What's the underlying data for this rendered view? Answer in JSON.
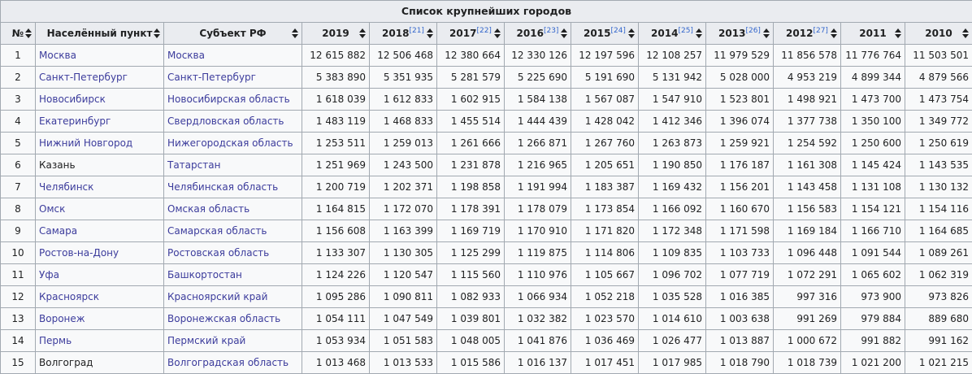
{
  "table": {
    "caption": "Список крупнейших городов",
    "columns": [
      {
        "label": "№",
        "ref": ""
      },
      {
        "label": "Населённый пункт",
        "ref": ""
      },
      {
        "label": "Субъект РФ",
        "ref": ""
      },
      {
        "label": "2019",
        "ref": ""
      },
      {
        "label": "2018",
        "ref": "[21]"
      },
      {
        "label": "2017",
        "ref": "[22]"
      },
      {
        "label": "2016",
        "ref": "[23]"
      },
      {
        "label": "2015",
        "ref": "[24]"
      },
      {
        "label": "2014",
        "ref": "[25]"
      },
      {
        "label": "2013",
        "ref": "[26]"
      },
      {
        "label": "2012",
        "ref": "[27]"
      },
      {
        "label": "2011",
        "ref": ""
      },
      {
        "label": "2010",
        "ref": ""
      }
    ],
    "rows": [
      {
        "n": "1",
        "city": "Москва",
        "region": "Москва",
        "values": [
          "12 615 882",
          "12 506 468",
          "12 380 664",
          "12 330 126",
          "12 197 596",
          "12 108 257",
          "11 979 529",
          "11 856 578",
          "11 776 764",
          "11 503 501"
        ]
      },
      {
        "n": "2",
        "city": "Санкт-Петербург",
        "region": "Санкт-Петербург",
        "values": [
          "5 383 890",
          "5 351 935",
          "5 281 579",
          "5 225 690",
          "5 191 690",
          "5 131 942",
          "5 028 000",
          "4 953 219",
          "4 899 344",
          "4 879 566"
        ]
      },
      {
        "n": "3",
        "city": "Новосибирск",
        "region": "Новосибирская область",
        "values": [
          "1 618 039",
          "1 612 833",
          "1 602 915",
          "1 584 138",
          "1 567 087",
          "1 547 910",
          "1 523 801",
          "1 498 921",
          "1 473 700",
          "1 473 754"
        ]
      },
      {
        "n": "4",
        "city": "Екатеринбург",
        "region": "Свердловская область",
        "values": [
          "1 483 119",
          "1 468 833",
          "1 455 514",
          "1 444 439",
          "1 428 042",
          "1 412 346",
          "1 396 074",
          "1 377 738",
          "1 350 100",
          "1 349 772"
        ]
      },
      {
        "n": "5",
        "city": "Нижний Новгород",
        "region": "Нижегородская область",
        "values": [
          "1 253 511",
          "1 259 013",
          "1 261 666",
          "1 266 871",
          "1 267 760",
          "1 263 873",
          "1 259 921",
          "1 254 592",
          "1 250 600",
          "1 250 619"
        ]
      },
      {
        "n": "6",
        "city": "Казань",
        "region": "Татарстан",
        "visited": true,
        "values": [
          "1 251 969",
          "1 243 500",
          "1 231 878",
          "1 216 965",
          "1 205 651",
          "1 190 850",
          "1 176 187",
          "1 161 308",
          "1 145 424",
          "1 143 535"
        ]
      },
      {
        "n": "7",
        "city": "Челябинск",
        "region": "Челябинская область",
        "values": [
          "1 200 719",
          "1 202 371",
          "1 198 858",
          "1 191 994",
          "1 183 387",
          "1 169 432",
          "1 156 201",
          "1 143 458",
          "1 131 108",
          "1 130 132"
        ]
      },
      {
        "n": "8",
        "city": "Омск",
        "region": "Омская область",
        "values": [
          "1 164 815",
          "1 172 070",
          "1 178 391",
          "1 178 079",
          "1 173 854",
          "1 166 092",
          "1 160 670",
          "1 156 583",
          "1 154 121",
          "1 154 116"
        ]
      },
      {
        "n": "9",
        "city": "Самара",
        "region": "Самарская область",
        "values": [
          "1 156 608",
          "1 163 399",
          "1 169 719",
          "1 170 910",
          "1 171 820",
          "1 172 348",
          "1 171 598",
          "1 169 184",
          "1 166 710",
          "1 164 685"
        ]
      },
      {
        "n": "10",
        "city": "Ростов-на-Дону",
        "region": "Ростовская область",
        "values": [
          "1 133 307",
          "1 130 305",
          "1 125 299",
          "1 119 875",
          "1 114 806",
          "1 109 835",
          "1 103 733",
          "1 096 448",
          "1 091 544",
          "1 089 261"
        ]
      },
      {
        "n": "11",
        "city": "Уфа",
        "region": "Башкортостан",
        "values": [
          "1 124 226",
          "1 120 547",
          "1 115 560",
          "1 110 976",
          "1 105 667",
          "1 096 702",
          "1 077 719",
          "1 072 291",
          "1 065 602",
          "1 062 319"
        ]
      },
      {
        "n": "12",
        "city": "Красноярск",
        "region": "Красноярский край",
        "values": [
          "1 095 286",
          "1 090 811",
          "1 082 933",
          "1 066 934",
          "1 052 218",
          "1 035 528",
          "1 016 385",
          "997 316",
          "973 900",
          "973 826"
        ]
      },
      {
        "n": "13",
        "city": "Воронеж",
        "region": "Воронежская область",
        "values": [
          "1 054 111",
          "1 047 549",
          "1 039 801",
          "1 032 382",
          "1 023 570",
          "1 014 610",
          "1 003 638",
          "991 269",
          "979 884",
          "889 680"
        ]
      },
      {
        "n": "14",
        "city": "Пермь",
        "region": "Пермский край",
        "values": [
          "1 053 934",
          "1 051 583",
          "1 048 005",
          "1 041 876",
          "1 036 469",
          "1 026 477",
          "1 013 887",
          "1 000 672",
          "991 882",
          "991 162"
        ]
      },
      {
        "n": "15",
        "city": "Волгоград",
        "region": "Волгоградская область",
        "visited": true,
        "values": [
          "1 013 468",
          "1 013 533",
          "1 015 586",
          "1 016 137",
          "1 017 451",
          "1 017 985",
          "1 018 790",
          "1 018 739",
          "1 021 200",
          "1 021 215"
        ]
      }
    ]
  }
}
